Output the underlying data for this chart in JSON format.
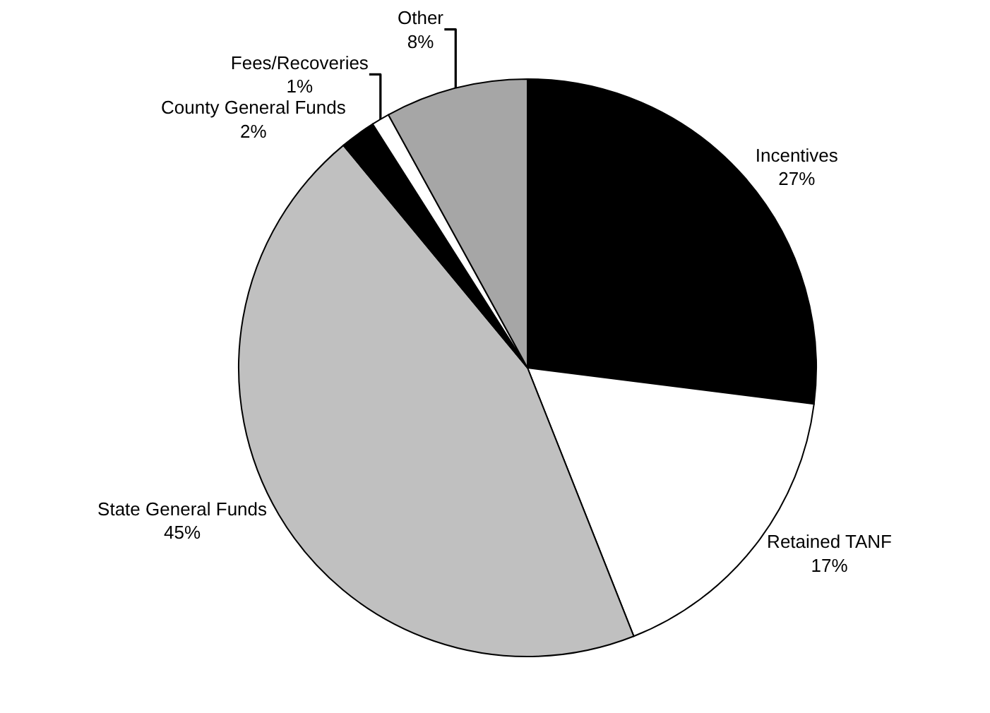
{
  "chart_data": {
    "type": "pie",
    "categories": [
      "Incentives",
      "Retained TANF",
      "State General Funds",
      "County General Funds",
      "Fees/Recoveries",
      "Other"
    ],
    "values": [
      27,
      17,
      45,
      2,
      1,
      8
    ],
    "value_labels": [
      "27%",
      "17%",
      "45%",
      "2%",
      "1%",
      "8%"
    ],
    "colors": [
      "#000000",
      "#ffffff",
      "#c0c0c0",
      "#000000",
      "#ffffff",
      "#a6a6a6"
    ],
    "legend": false
  }
}
